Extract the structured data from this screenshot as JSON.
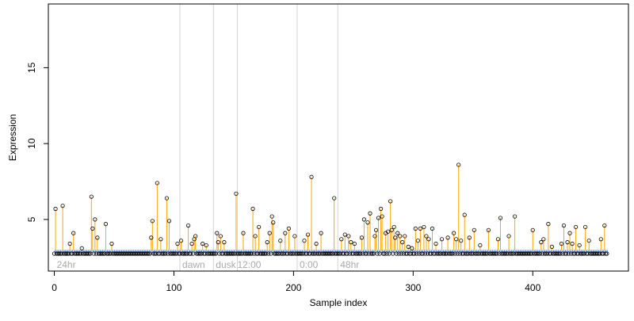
{
  "chart_data": {
    "type": "scatter",
    "title": "",
    "xlabel": "Sample index",
    "ylabel": "Expression",
    "xlim": [
      -5,
      480
    ],
    "ylim": [
      1.6,
      19.2
    ],
    "x_ticks": [
      0,
      100,
      200,
      300,
      400
    ],
    "y_ticks": [
      5,
      10,
      15
    ],
    "x_tick_labels": [
      "0",
      "100",
      "200",
      "300",
      "400"
    ],
    "y_tick_labels": [
      "5",
      "10",
      "15"
    ],
    "baseline": 3.0,
    "grid": false,
    "legend": "none",
    "colors": {
      "stem": "#ffa500",
      "baseline_bar": "#6495ed",
      "point_stroke": "#000000",
      "divider": "#d3d3d3",
      "section_label": "#a9a9a9"
    },
    "dividers": [
      105,
      133,
      153,
      203,
      237
    ],
    "section_labels": [
      {
        "x": 2,
        "text": "24hr"
      },
      {
        "x": 107,
        "text": "dawn"
      },
      {
        "x": 135,
        "text": "dusk"
      },
      {
        "x": 153,
        "text": "12:00"
      },
      {
        "x": 205,
        "text": "0:00"
      },
      {
        "x": 239,
        "text": "48hr"
      }
    ],
    "n_samples": 463,
    "background_level": 2.75,
    "peaks": [
      {
        "x": 1,
        "y": 5.7
      },
      {
        "x": 7,
        "y": 5.9
      },
      {
        "x": 13,
        "y": 3.4
      },
      {
        "x": 16,
        "y": 4.1
      },
      {
        "x": 23,
        "y": 3.1
      },
      {
        "x": 31,
        "y": 6.5
      },
      {
        "x": 32,
        "y": 4.4
      },
      {
        "x": 34,
        "y": 5.0
      },
      {
        "x": 36,
        "y": 3.8
      },
      {
        "x": 43,
        "y": 4.7
      },
      {
        "x": 48,
        "y": 3.4
      },
      {
        "x": 81,
        "y": 3.8
      },
      {
        "x": 82,
        "y": 4.9
      },
      {
        "x": 86,
        "y": 7.4
      },
      {
        "x": 89,
        "y": 3.7
      },
      {
        "x": 94,
        "y": 6.4
      },
      {
        "x": 96,
        "y": 4.9
      },
      {
        "x": 103,
        "y": 3.4
      },
      {
        "x": 106,
        "y": 3.6
      },
      {
        "x": 112,
        "y": 4.6
      },
      {
        "x": 115,
        "y": 3.4
      },
      {
        "x": 117,
        "y": 3.7
      },
      {
        "x": 118,
        "y": 3.9
      },
      {
        "x": 124,
        "y": 3.4
      },
      {
        "x": 127,
        "y": 3.3
      },
      {
        "x": 136,
        "y": 4.1
      },
      {
        "x": 137,
        "y": 3.5
      },
      {
        "x": 139,
        "y": 3.9
      },
      {
        "x": 142,
        "y": 3.5
      },
      {
        "x": 152,
        "y": 6.7
      },
      {
        "x": 158,
        "y": 4.1
      },
      {
        "x": 166,
        "y": 5.7
      },
      {
        "x": 168,
        "y": 3.9
      },
      {
        "x": 171,
        "y": 4.5
      },
      {
        "x": 178,
        "y": 3.5
      },
      {
        "x": 180,
        "y": 4.1
      },
      {
        "x": 182,
        "y": 5.2
      },
      {
        "x": 183,
        "y": 4.8
      },
      {
        "x": 189,
        "y": 3.6
      },
      {
        "x": 193,
        "y": 4.1
      },
      {
        "x": 196,
        "y": 4.4
      },
      {
        "x": 201,
        "y": 3.9
      },
      {
        "x": 209,
        "y": 3.6
      },
      {
        "x": 212,
        "y": 4.0
      },
      {
        "x": 215,
        "y": 7.8
      },
      {
        "x": 219,
        "y": 3.4
      },
      {
        "x": 223,
        "y": 4.1
      },
      {
        "x": 234,
        "y": 6.4
      },
      {
        "x": 240,
        "y": 3.7
      },
      {
        "x": 243,
        "y": 4.0
      },
      {
        "x": 246,
        "y": 3.9
      },
      {
        "x": 248,
        "y": 3.5
      },
      {
        "x": 251,
        "y": 3.4
      },
      {
        "x": 257,
        "y": 3.8
      },
      {
        "x": 259,
        "y": 5.0
      },
      {
        "x": 262,
        "y": 4.8
      },
      {
        "x": 264,
        "y": 5.4
      },
      {
        "x": 268,
        "y": 3.9
      },
      {
        "x": 269,
        "y": 4.3
      },
      {
        "x": 271,
        "y": 5.1
      },
      {
        "x": 273,
        "y": 5.7
      },
      {
        "x": 274,
        "y": 5.2
      },
      {
        "x": 277,
        "y": 4.1
      },
      {
        "x": 279,
        "y": 4.2
      },
      {
        "x": 281,
        "y": 6.2
      },
      {
        "x": 282,
        "y": 4.3
      },
      {
        "x": 284,
        "y": 4.5
      },
      {
        "x": 285,
        "y": 3.8
      },
      {
        "x": 287,
        "y": 4.1
      },
      {
        "x": 289,
        "y": 3.9
      },
      {
        "x": 291,
        "y": 3.5
      },
      {
        "x": 293,
        "y": 3.9
      },
      {
        "x": 296,
        "y": 3.2
      },
      {
        "x": 299,
        "y": 3.1
      },
      {
        "x": 302,
        "y": 4.4
      },
      {
        "x": 304,
        "y": 3.6
      },
      {
        "x": 306,
        "y": 4.4
      },
      {
        "x": 309,
        "y": 4.5
      },
      {
        "x": 311,
        "y": 3.9
      },
      {
        "x": 313,
        "y": 3.7
      },
      {
        "x": 316,
        "y": 4.4
      },
      {
        "x": 319,
        "y": 3.4
      },
      {
        "x": 324,
        "y": 3.7
      },
      {
        "x": 329,
        "y": 3.8
      },
      {
        "x": 334,
        "y": 4.1
      },
      {
        "x": 336,
        "y": 3.7
      },
      {
        "x": 338,
        "y": 8.6
      },
      {
        "x": 340,
        "y": 3.6
      },
      {
        "x": 343,
        "y": 5.3
      },
      {
        "x": 347,
        "y": 3.8
      },
      {
        "x": 351,
        "y": 4.3
      },
      {
        "x": 356,
        "y": 3.3
      },
      {
        "x": 363,
        "y": 4.3
      },
      {
        "x": 371,
        "y": 3.7
      },
      {
        "x": 373,
        "y": 5.1
      },
      {
        "x": 380,
        "y": 3.9
      },
      {
        "x": 385,
        "y": 5.2
      },
      {
        "x": 400,
        "y": 4.3
      },
      {
        "x": 407,
        "y": 3.5
      },
      {
        "x": 409,
        "y": 3.7
      },
      {
        "x": 413,
        "y": 4.7
      },
      {
        "x": 416,
        "y": 3.2
      },
      {
        "x": 424,
        "y": 3.4
      },
      {
        "x": 426,
        "y": 4.6
      },
      {
        "x": 429,
        "y": 3.5
      },
      {
        "x": 431,
        "y": 4.1
      },
      {
        "x": 433,
        "y": 3.4
      },
      {
        "x": 436,
        "y": 4.5
      },
      {
        "x": 439,
        "y": 3.3
      },
      {
        "x": 444,
        "y": 4.5
      },
      {
        "x": 447,
        "y": 3.6
      },
      {
        "x": 457,
        "y": 3.7
      },
      {
        "x": 460,
        "y": 4.6
      }
    ]
  }
}
